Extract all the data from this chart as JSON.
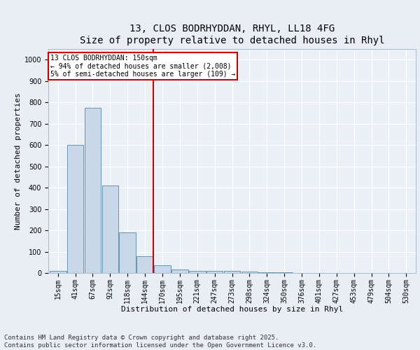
{
  "title_line1": "13, CLOS BODRHYDDAN, RHYL, LL18 4FG",
  "title_line2": "Size of property relative to detached houses in Rhyl",
  "xlabel": "Distribution of detached houses by size in Rhyl",
  "ylabel": "Number of detached properties",
  "categories": [
    "15sqm",
    "41sqm",
    "67sqm",
    "92sqm",
    "118sqm",
    "144sqm",
    "170sqm",
    "195sqm",
    "221sqm",
    "247sqm",
    "273sqm",
    "298sqm",
    "324sqm",
    "350sqm",
    "376sqm",
    "401sqm",
    "427sqm",
    "453sqm",
    "479sqm",
    "504sqm",
    "530sqm"
  ],
  "values": [
    10,
    600,
    775,
    410,
    190,
    80,
    35,
    15,
    10,
    10,
    10,
    5,
    2,
    2,
    1,
    1,
    1,
    1,
    0,
    0,
    0
  ],
  "bar_color": "#c8d8e8",
  "bar_edge_color": "#5588aa",
  "vline_color": "#cc0000",
  "annotation_box_text": "13 CLOS BODRHYDDAN: 150sqm\n← 94% of detached houses are smaller (2,008)\n5% of semi-detached houses are larger (109) →",
  "annotation_box_color": "#cc0000",
  "annotation_box_fill": "#ffffff",
  "ylim": [
    0,
    1050
  ],
  "yticks": [
    0,
    100,
    200,
    300,
    400,
    500,
    600,
    700,
    800,
    900,
    1000
  ],
  "background_color": "#e8eef4",
  "plot_background_color": "#eaf0f6",
  "grid_color": "#ffffff",
  "footer_text": "Contains HM Land Registry data © Crown copyright and database right 2025.\nContains public sector information licensed under the Open Government Licence v3.0.",
  "title_fontsize": 10,
  "axis_label_fontsize": 8,
  "tick_fontsize": 7,
  "footer_fontsize": 6.5
}
